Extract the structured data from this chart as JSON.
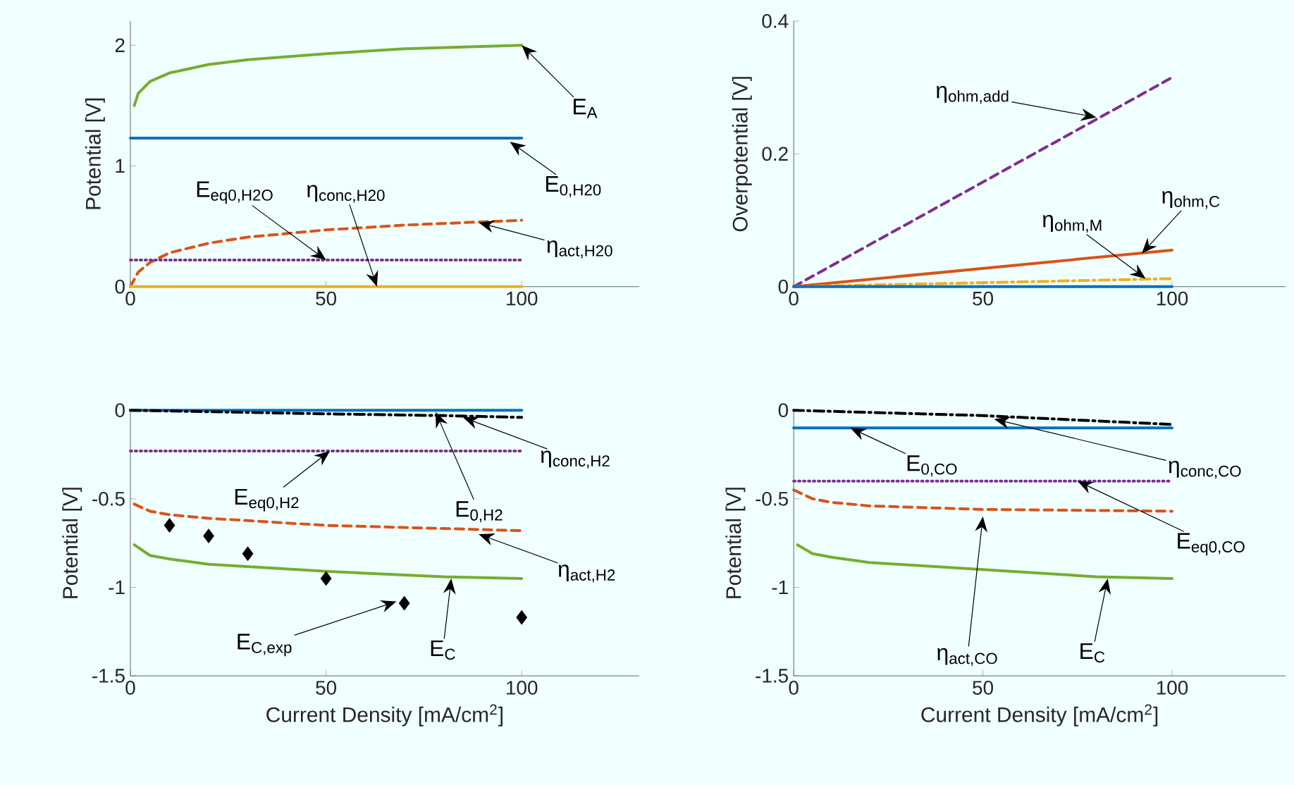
{
  "chart_data": [
    {
      "type": "line",
      "ylabel": "Potential [V]",
      "xlim": [
        0,
        130
      ],
      "xticks": [
        0,
        50,
        100
      ],
      "ylim": [
        0,
        2.2
      ],
      "yticks": [
        0,
        1,
        2
      ],
      "series": [
        {
          "color": "#77ac30",
          "line_style": "solid",
          "x": [
            1,
            2,
            5,
            10,
            20,
            30,
            50,
            70,
            100
          ],
          "values": [
            1.5,
            1.6,
            1.7,
            1.77,
            1.84,
            1.88,
            1.93,
            1.97,
            2.0
          ]
        },
        {
          "color": "#0072bd",
          "line_style": "solid",
          "x": [
            0,
            100
          ],
          "values": [
            1.23,
            1.23
          ]
        },
        {
          "color": "#d95319",
          "line_style": "dashed",
          "x": [
            0,
            2,
            5,
            10,
            20,
            30,
            50,
            70,
            100
          ],
          "values": [
            0,
            0.12,
            0.2,
            0.28,
            0.36,
            0.41,
            0.47,
            0.51,
            0.55
          ]
        },
        {
          "color": "#7e2f8e",
          "line_style": "dotted",
          "x": [
            0,
            100
          ],
          "values": [
            0.22,
            0.22
          ]
        },
        {
          "color": "#edb120",
          "line_style": "solid",
          "x": [
            0,
            100
          ],
          "values": [
            0,
            0
          ]
        }
      ],
      "annotations": [
        {
          "text": "E$_{A}$",
          "x": 100,
          "y": 2.0
        },
        {
          "text": "E$_{0,H20}$",
          "x": 97,
          "y": 1.2
        },
        {
          "text": "η$_{act,H20}$",
          "x": 89,
          "y": 0.53
        },
        {
          "text": "E$_{eq0,H2O}$",
          "x": 50,
          "y": 0.22
        },
        {
          "text": "η$_{conc,H20}$",
          "x": 63,
          "y": 0
        }
      ]
    },
    {
      "type": "line",
      "ylabel": "Overpotential [V]",
      "xlim": [
        0,
        130
      ],
      "xticks": [
        0,
        50,
        100
      ],
      "ylim": [
        0,
        0.4
      ],
      "yticks": [
        0,
        0.2,
        0.4
      ],
      "series": [
        {
          "color": "#7e2f8e",
          "line_style": "dashed",
          "x": [
            0,
            100
          ],
          "values": [
            0,
            0.315
          ]
        },
        {
          "color": "#d95319",
          "line_style": "solid",
          "x": [
            0,
            100
          ],
          "values": [
            0,
            0.055
          ]
        },
        {
          "color": "#edb120",
          "line_style": "dashdot",
          "x": [
            0,
            100
          ],
          "values": [
            0,
            0.012
          ]
        },
        {
          "color": "#0072bd",
          "line_style": "solid",
          "x": [
            0,
            100
          ],
          "values": [
            0,
            0
          ]
        }
      ],
      "annotations": [
        {
          "text": "η$_{ohm,add}$",
          "x": 80,
          "y": 0.255
        },
        {
          "text": "η$_{ohm,C}$",
          "x": 92,
          "y": 0.05
        },
        {
          "text": "η$_{ohm,M}$",
          "x": 93,
          "y": 0.012
        }
      ]
    },
    {
      "type": "line",
      "xlabel": "Current Density [mA/cm$^{2}$]",
      "ylabel": "Potential [V]",
      "xlim": [
        0,
        130
      ],
      "xticks": [
        0,
        50,
        100
      ],
      "ylim": [
        -1.5,
        0
      ],
      "yticks": [
        -1.5,
        -1,
        -0.5,
        0
      ],
      "series": [
        {
          "color": "#0072bd",
          "line_style": "solid",
          "x": [
            0,
            100
          ],
          "values": [
            0,
            0
          ]
        },
        {
          "color": "#000000",
          "line_style": "dashdot",
          "x": [
            0,
            50,
            80,
            100
          ],
          "values": [
            0,
            -0.02,
            -0.03,
            -0.04
          ]
        },
        {
          "color": "#7e2f8e",
          "line_style": "dotted",
          "x": [
            0,
            100
          ],
          "values": [
            -0.23,
            -0.23
          ]
        },
        {
          "color": "#d95319",
          "line_style": "dashed",
          "x": [
            1,
            5,
            10,
            20,
            50,
            100
          ],
          "values": [
            -0.53,
            -0.57,
            -0.59,
            -0.61,
            -0.65,
            -0.68
          ]
        },
        {
          "color": "#77ac30",
          "line_style": "solid",
          "x": [
            1,
            5,
            10,
            20,
            50,
            80,
            100
          ],
          "values": [
            -0.76,
            -0.82,
            -0.84,
            -0.87,
            -0.91,
            -0.94,
            -0.95
          ]
        },
        {
          "type": "scatter",
          "marker": "diamond",
          "color": "#000000",
          "x": [
            10,
            20,
            30,
            50,
            70,
            100
          ],
          "values": [
            -0.65,
            -0.71,
            -0.81,
            -0.95,
            -1.09,
            -1.17
          ]
        }
      ],
      "annotations": [
        {
          "text": "η$_{conc,H2}$",
          "x": 85,
          "y": -0.04
        },
        {
          "text": "E$_{0,H2}$",
          "x": 78,
          "y": -0.01
        },
        {
          "text": "E$_{eq0,H2}$",
          "x": 51,
          "y": -0.23
        },
        {
          "text": "η$_{act,H2}$",
          "x": 89,
          "y": -0.7
        },
        {
          "text": "E$_{C,exp}$",
          "x": 68,
          "y": -1.08
        },
        {
          "text": "E$_{C}$",
          "x": 82,
          "y": -0.95
        }
      ]
    },
    {
      "type": "line",
      "xlabel": "Current Density [mA/cm$^{2}$]",
      "ylabel": "Potential [V]",
      "xlim": [
        0,
        130
      ],
      "xticks": [
        0,
        50,
        100
      ],
      "ylim": [
        -1.5,
        0
      ],
      "yticks": [
        -1.5,
        -1,
        -0.5,
        0
      ],
      "series": [
        {
          "color": "#000000",
          "line_style": "dashdot",
          "x": [
            0,
            50,
            100
          ],
          "values": [
            0,
            -0.03,
            -0.08
          ]
        },
        {
          "color": "#0072bd",
          "line_style": "solid",
          "x": [
            0,
            100
          ],
          "values": [
            -0.1,
            -0.1
          ]
        },
        {
          "color": "#7e2f8e",
          "line_style": "dotted",
          "x": [
            0,
            100
          ],
          "values": [
            -0.4,
            -0.4
          ]
        },
        {
          "color": "#d95319",
          "line_style": "dashed",
          "x": [
            0,
            5,
            10,
            20,
            50,
            100
          ],
          "values": [
            -0.45,
            -0.5,
            -0.52,
            -0.54,
            -0.56,
            -0.57
          ]
        },
        {
          "color": "#77ac30",
          "line_style": "solid",
          "x": [
            1,
            5,
            10,
            20,
            50,
            80,
            100
          ],
          "values": [
            -0.76,
            -0.81,
            -0.83,
            -0.86,
            -0.9,
            -0.94,
            -0.95
          ]
        }
      ],
      "annotations": [
        {
          "text": "E$_{0,CO}$",
          "x": 15,
          "y": -0.1
        },
        {
          "text": "η$_{conc,CO}$",
          "x": 53,
          "y": -0.05
        },
        {
          "text": "E$_{eq0,CO}$",
          "x": 75,
          "y": -0.4
        },
        {
          "text": "η$_{act,CO}$",
          "x": 50,
          "y": -0.6
        },
        {
          "text": "E$_{C}$",
          "x": 83,
          "y": -0.95
        }
      ]
    }
  ]
}
